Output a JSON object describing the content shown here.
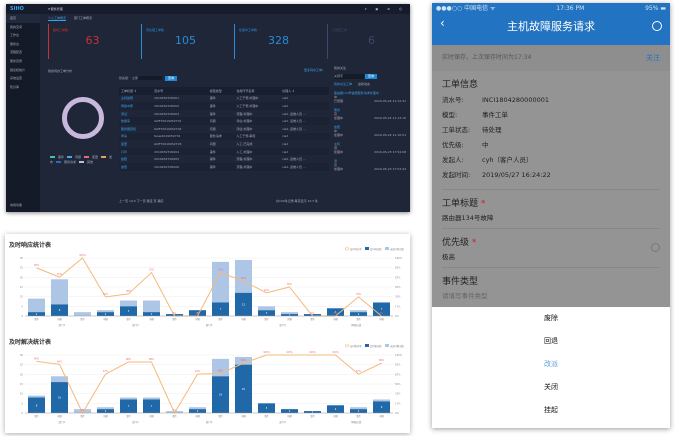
{
  "dashboard": {
    "logo": "SIHO",
    "system_title": "IT服务管理",
    "top_icons": "▾ ▣ ⚙ ☺",
    "sidebar": [
      "首页",
      "我的空间",
      "工作台",
      "服务台",
      "流程配置",
      "服务目录",
      "报表和统计",
      "系统设置",
      "知识库"
    ],
    "sidebar_bottom": "常用功能",
    "tabs": [
      "个人工单概览",
      "部门工单概览"
    ],
    "cards": [
      {
        "label": "超时工单数",
        "value": "63",
        "color": "#c83232"
      },
      {
        "label": "待处理工单数",
        "value": "105",
        "color": "#2a8ad8"
      },
      {
        "label": "处理中工单数",
        "value": "328",
        "color": "#2a8ad8"
      },
      {
        "label": "已挂起工单",
        "value": "6",
        "color": "#3a4a6a"
      }
    ],
    "donut_title": "我的待办工单分布",
    "legend": [
      {
        "label": "事件",
        "color": "#3ec49a"
      },
      {
        "label": "问题",
        "color": "#4aa8e8"
      },
      {
        "label": "变更",
        "color": "#e86a7a"
      },
      {
        "label": "发布",
        "color": "#e8a060"
      },
      {
        "label": "服务请求",
        "color": "#2a6ab8"
      },
      {
        "label": "其他",
        "color": "#c8b8dc"
      }
    ],
    "filter_label": "优先级:",
    "filter_value": "全部",
    "search_btn": "查询",
    "more_link": "更多待办工单»",
    "table_headers": [
      "工单标题 ⇕",
      "流水号",
      "模型类型",
      "当前环节名称",
      "处理人 ⇕"
    ],
    "table_rows": [
      [
        "主机故障",
        "2019052700001",
        "事件",
        "人工干预-处理中",
        "cwd"
      ],
      [
        "网络中断",
        "2019052700002",
        "事件",
        "人工干预-处理中",
        "cwd"
      ],
      [
        "测试",
        "2019052700003",
        "事件",
        "流程-处理中",
        "cwd, 运维人员 ..."
      ],
      [
        "数据库",
        "GDFT2019052701",
        "问题",
        "评估-处理中",
        "cwd, 运维人员 ..."
      ],
      [
        "服务器宕机",
        "GDFT2019052702",
        "问题",
        "评估-处理中",
        "cwd, 运维人员 ..."
      ],
      [
        "申请",
        "fwqq2019052701",
        "服务请求",
        "人工干预-审核",
        "cwd"
      ],
      [
        "变更",
        "GDFT2019052703",
        "问题",
        "人工-已完成",
        "cwd"
      ],
      [
        "打印",
        "2019052700004",
        "事件",
        "人工-处理中",
        "cwd"
      ],
      [
        "故障",
        "2019052700005",
        "事件",
        "流程-处理中",
        "cwd, 运维人员 ..."
      ],
      [
        "故障",
        "2019052700006",
        "事件",
        "流程-处理中",
        "cwd, 运维人员 ..."
      ]
    ],
    "pager": "上一页  1/10  下一页   跳至   页  确定",
    "pager_right": "共100条记录,每页显示 10 ▾ 条",
    "right_title": "我的关注",
    "right_search": "关键字",
    "right_btn": "查询",
    "right_tabs": [
      "我的关注工单",
      "最新动态"
    ],
    "right_items": [
      {
        "title": "路由器134号故障服务请求处理中",
        "sub": "中",
        "status": "已受理",
        "time": "2019-05-24 11:12:47"
      },
      {
        "title": "服务",
        "sub": "高",
        "status": "处理中",
        "time": "2019-05-24 11:13:10"
      },
      {
        "title": "故障",
        "sub": "中",
        "status": "处理中",
        "time": "2019-05-24 11:10:51"
      },
      {
        "title": "主机",
        "sub": "低",
        "status": "处理中",
        "time": "2019-05-23 17:54:08"
      },
      {
        "title": "测",
        "sub": "高",
        "status": "处理中",
        "time": "2019-05-23 17:53:44"
      }
    ]
  },
  "chart_data": [
    {
      "type": "bar",
      "title": "及时响应统计表",
      "categories": [
        "事件",
        "问题",
        "事件",
        "问题",
        "事件",
        "问题",
        "事件",
        "问题",
        "事件",
        "问题",
        "事件",
        "问题",
        "事件",
        "问题",
        "事件",
        "问题"
      ],
      "groups": [
        "部门1",
        "部门2",
        "部门3",
        "部门4",
        "网络运维"
      ],
      "yleft": [
        0,
        30
      ],
      "yright": [
        0,
        100
      ],
      "series": [
        {
          "name": "及时响应率",
          "type": "line",
          "color": "#f5b97a",
          "values": [
            83,
            67,
            100,
            33,
            38,
            75,
            0,
            0,
            75,
            60,
            40,
            50,
            0,
            0,
            33,
            0
          ]
        },
        {
          "name": "及时响应数",
          "type": "bar",
          "color": "#2168a8",
          "values": [
            2,
            6,
            0,
            2,
            5,
            2,
            1,
            3,
            7,
            12,
            3,
            1,
            1,
            4,
            2,
            7
          ]
        },
        {
          "name": "未及时响应数",
          "type": "bar",
          "color": "#aec6e6",
          "values": [
            7,
            13,
            2,
            1,
            3,
            6,
            0,
            0,
            21,
            17,
            2,
            1,
            0,
            0,
            1,
            0
          ]
        }
      ]
    },
    {
      "type": "bar",
      "title": "及时解决统计表",
      "categories": [
        "事件",
        "问题",
        "事件",
        "问题",
        "事件",
        "问题",
        "事件",
        "问题",
        "事件",
        "问题",
        "事件",
        "问题",
        "事件",
        "问题",
        "事件",
        "问题"
      ],
      "groups": [
        "部门1",
        "部门2",
        "部门3",
        "部门4",
        "网络运维"
      ],
      "yleft": [
        0,
        30
      ],
      "yright": [
        0,
        100
      ],
      "series": [
        {
          "name": "及时解决率",
          "type": "line",
          "color": "#f5b97a",
          "values": [
            89,
            84,
            0,
            67,
            88,
            88,
            0,
            67,
            68,
            86,
            100,
            100,
            100,
            100,
            67,
            86
          ]
        },
        {
          "name": "及时解决数",
          "type": "bar",
          "color": "#2168a8",
          "values": [
            8,
            16,
            0,
            2,
            7,
            7,
            0,
            2,
            19,
            25,
            5,
            2,
            1,
            4,
            2,
            6
          ]
        },
        {
          "name": "未及时解决数",
          "type": "bar",
          "color": "#aec6e6",
          "values": [
            1,
            3,
            2,
            1,
            1,
            1,
            1,
            1,
            9,
            4,
            0,
            0,
            0,
            0,
            1,
            1
          ]
        }
      ]
    }
  ],
  "phone": {
    "status_left": "●●●○○ 中国电信 ᯤ",
    "status_time": "17:36 PM",
    "status_right": "95% ▬",
    "title": "主机故障服务请求",
    "back": "‹",
    "save_note": "实时保存，上次保存时间为17:34",
    "follow": "关注",
    "info_title": "工单信息",
    "info": [
      [
        "流水号:",
        "INCI1804280000001"
      ],
      [
        "模型:",
        "事件工单"
      ],
      [
        "工单状态:",
        "待处理"
      ],
      [
        "优先级:",
        "中"
      ],
      [
        "发起人:",
        "cyh（客户人员）"
      ],
      [
        "发起时间:",
        "2019/05/27  16:24:22"
      ]
    ],
    "title_label": "工单标题",
    "title_value": "路由器134号故障",
    "priority_label": "优先级",
    "priority_value": "极高",
    "type_label": "事件类型",
    "type_placeholder": "请填写事件类型",
    "required": "*",
    "actions": [
      "废除",
      "回退",
      "改派",
      "关闭",
      "挂起"
    ]
  }
}
